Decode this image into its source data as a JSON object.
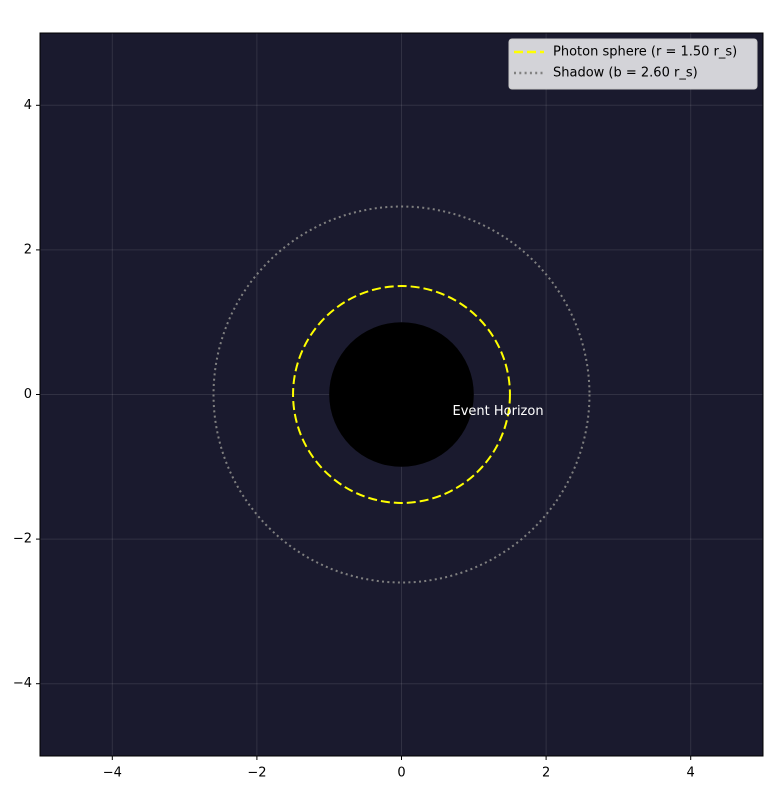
{
  "chart_data": {
    "type": "circles",
    "background": "#1a1a2e",
    "grid": true,
    "xlim": [
      -5,
      5
    ],
    "ylim": [
      -5,
      5
    ],
    "xticks": [
      {
        "value": -4,
        "label": "−4"
      },
      {
        "value": -2,
        "label": "−2"
      },
      0,
      2,
      4
    ],
    "yticks": [
      {
        "value": -4,
        "label": "−4"
      },
      {
        "value": -2,
        "label": "−2"
      },
      0,
      2,
      4
    ],
    "center": [
      0,
      0
    ],
    "event_horizon": {
      "label": "Event Horizon",
      "radius": 1,
      "color": "#000000"
    },
    "circles": [
      {
        "name": "Photon sphere (r = 1.50 r_s)",
        "radius": 1.5,
        "color": "#ffff00",
        "style": "dashed"
      },
      {
        "name": "Shadow (b = 2.60 r_s)",
        "radius": 2.6,
        "color": "#808080",
        "style": "dotted"
      }
    ],
    "legend": "upper right"
  }
}
